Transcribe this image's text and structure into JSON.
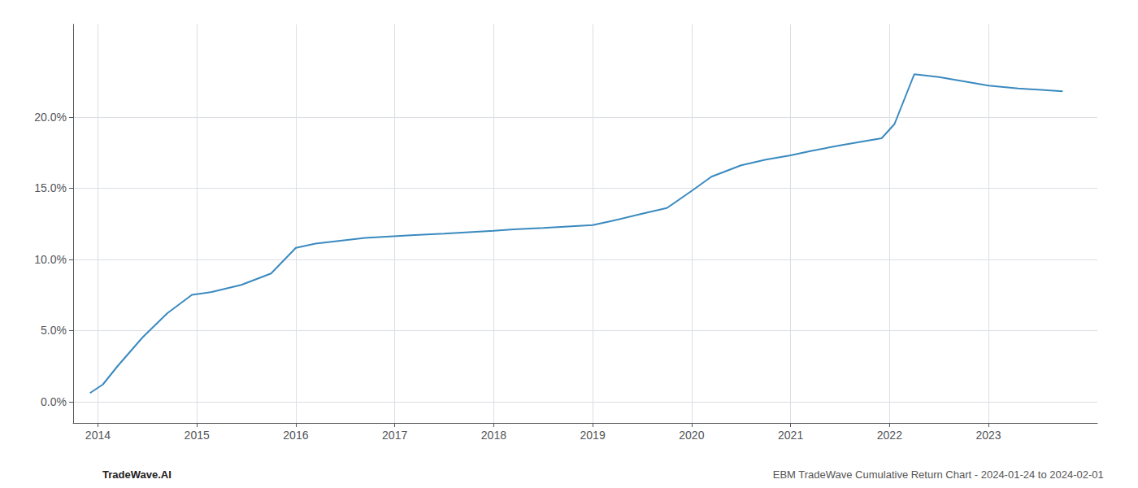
{
  "chart_data": {
    "type": "line",
    "x": [
      2013.92,
      2014.05,
      2014.2,
      2014.45,
      2014.7,
      2014.95,
      2015.15,
      2015.45,
      2015.75,
      2016.0,
      2016.2,
      2016.45,
      2016.7,
      2016.95,
      2017.2,
      2017.5,
      2017.75,
      2018.0,
      2018.2,
      2018.5,
      2018.75,
      2019.0,
      2019.2,
      2019.5,
      2019.75,
      2020.0,
      2020.2,
      2020.5,
      2020.75,
      2021.0,
      2021.2,
      2021.5,
      2021.75,
      2021.92,
      2022.05,
      2022.25,
      2022.5,
      2022.75,
      2023.0,
      2023.3,
      2023.75
    ],
    "values": [
      0.006,
      0.012,
      0.025,
      0.045,
      0.062,
      0.075,
      0.077,
      0.082,
      0.09,
      0.108,
      0.111,
      0.113,
      0.115,
      0.116,
      0.117,
      0.118,
      0.119,
      0.12,
      0.121,
      0.122,
      0.123,
      0.124,
      0.127,
      0.132,
      0.136,
      0.148,
      0.158,
      0.166,
      0.17,
      0.173,
      0.176,
      0.18,
      0.183,
      0.185,
      0.195,
      0.23,
      0.228,
      0.225,
      0.222,
      0.22,
      0.218
    ],
    "color": "#3a8abf",
    "xlim": [
      2013.75,
      2024.1
    ],
    "ylim": [
      -0.015,
      0.265
    ],
    "xticks": [
      2014,
      2015,
      2016,
      2017,
      2018,
      2019,
      2020,
      2021,
      2022,
      2023
    ],
    "yticks": [
      {
        "value": 0.0,
        "label": "0.0%"
      },
      {
        "value": 0.05,
        "label": "5.0%"
      },
      {
        "value": 0.1,
        "label": "10.0%"
      },
      {
        "value": 0.15,
        "label": "15.0%"
      },
      {
        "value": 0.2,
        "label": "20.0%"
      }
    ],
    "grid": true,
    "annotations": [
      "TradeWave.AI",
      "EBM TradeWave Cumulative Return Chart - 2024-01-24 to 2024-02-01"
    ]
  }
}
